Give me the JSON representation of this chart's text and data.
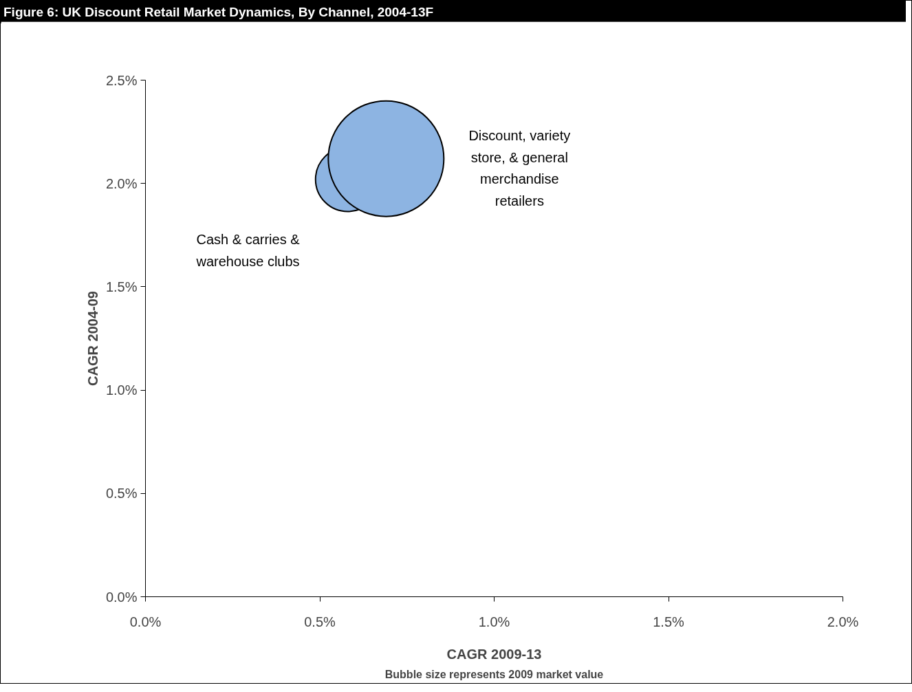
{
  "chart_data": {
    "type": "bubble",
    "title": "Figure 6: UK Discount Retail Market Dynamics, By Channel, 2004-13F",
    "xlabel": "CAGR 2009-13",
    "ylabel": "CAGR 2004-09",
    "xlim": [
      0,
      2
    ],
    "ylim": [
      0,
      2.5
    ],
    "xticks": [
      {
        "value": 0,
        "label": "0.0%"
      },
      {
        "value": 0.5,
        "label": "0.5%"
      },
      {
        "value": 1,
        "label": "1.0%"
      },
      {
        "value": 1.5,
        "label": "1.5%"
      },
      {
        "value": 2,
        "label": "2.0%"
      }
    ],
    "yticks": [
      {
        "value": 0,
        "label": "0.0%"
      },
      {
        "value": 0.5,
        "label": "0.5%"
      },
      {
        "value": 1,
        "label": "1.0%"
      },
      {
        "value": 1.5,
        "label": "1.5%"
      },
      {
        "value": 2,
        "label": "2.0%"
      },
      {
        "value": 2.5,
        "label": "2.5%"
      }
    ],
    "grid": false,
    "legend": false,
    "series": [
      {
        "name": "Cash & carries & warehouse clubs",
        "color": "#8db4e2",
        "x": [
          0.58
        ],
        "values": [
          2.02
        ],
        "sizes": [
          0.31
        ]
      },
      {
        "name": "Discount, variety store, & general merchandise retailers",
        "color": "#8db4e2",
        "x": [
          0.69
        ],
        "values": [
          2.12
        ],
        "sizes": [
          1
        ]
      }
    ],
    "annotations": [
      "Bubble size represents 2009 market value"
    ]
  }
}
